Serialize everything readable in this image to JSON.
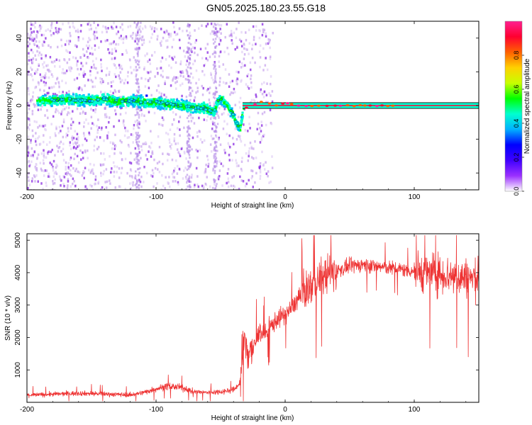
{
  "title": "GN05.2025.180.23.55.G18",
  "chart_data": [
    {
      "type": "heatmap",
      "xlabel": "Height of straight line (km)",
      "ylabel": "Frequency (Hz)",
      "xlim": [
        -200,
        150
      ],
      "ylim": [
        -50,
        50
      ],
      "xticks": [
        -200,
        -100,
        0,
        100
      ],
      "yticks": [
        -40,
        -20,
        0,
        20,
        40
      ],
      "ridge": {
        "x": [
          -200,
          -190,
          -180,
          -170,
          -160,
          -150,
          -140,
          -130,
          -120,
          -110,
          -100,
          -90,
          -80,
          -70,
          -60,
          -55,
          -52,
          -50,
          -48,
          -45,
          -42,
          -40,
          -38,
          -35,
          -32,
          -30,
          -25,
          -20,
          -15,
          -10,
          -5,
          0,
          5,
          10,
          20,
          40,
          60,
          80,
          100,
          120,
          150
        ],
        "y": [
          2,
          3,
          3,
          4,
          3,
          3,
          4,
          2,
          3,
          2,
          2,
          1,
          0,
          -1,
          -2,
          -4,
          3,
          4,
          3,
          0,
          -3,
          -6,
          -10,
          -14,
          -1,
          -1,
          0,
          2,
          2,
          1,
          0,
          2,
          1,
          0,
          0,
          0,
          0,
          0,
          0,
          0,
          0
        ]
      },
      "colorbar": {
        "label": "Normalized spectral amplitude",
        "range": [
          0,
          1
        ],
        "ticks": [
          0.0,
          0.2,
          0.4,
          0.6,
          0.8
        ],
        "colors": [
          "#ffffff",
          "#9b30ff",
          "#3f00ff",
          "#0000ff",
          "#00b0ff",
          "#00ffd0",
          "#00ff00",
          "#c8ff00",
          "#ffd000",
          "#ff6000",
          "#ff0030",
          "#ff2090"
        ]
      }
    },
    {
      "type": "line",
      "xlabel": "Height of straight line (km)",
      "ylabel": "SNR (10 * v/v)",
      "xlim": [
        -200,
        150
      ],
      "ylim": [
        0,
        5200
      ],
      "xticks": [
        -200,
        -100,
        0,
        100
      ],
      "yticks": [
        1000,
        2000,
        3000,
        4000,
        5000
      ],
      "color": "#ee3333",
      "series": [
        {
          "x": [
            -200,
            -180,
            -160,
            -140,
            -120,
            -110,
            -100,
            -90,
            -80,
            -70,
            -60,
            -50,
            -40,
            -35,
            -32,
            -30,
            -25,
            -20,
            -15,
            -10,
            -5,
            0,
            5,
            10,
            15,
            20,
            30,
            40,
            50,
            60,
            70,
            80,
            90,
            100,
            110,
            120,
            130,
            140,
            150
          ],
          "values": [
            220,
            250,
            280,
            260,
            230,
            300,
            420,
            500,
            450,
            320,
            300,
            330,
            380,
            600,
            1800,
            1700,
            1600,
            2200,
            2100,
            2400,
            2600,
            2700,
            2900,
            3200,
            3400,
            3600,
            3900,
            4050,
            4200,
            4250,
            4200,
            4150,
            4100,
            4050,
            4000,
            3950,
            3900,
            3850,
            3800
          ]
        }
      ]
    }
  ]
}
